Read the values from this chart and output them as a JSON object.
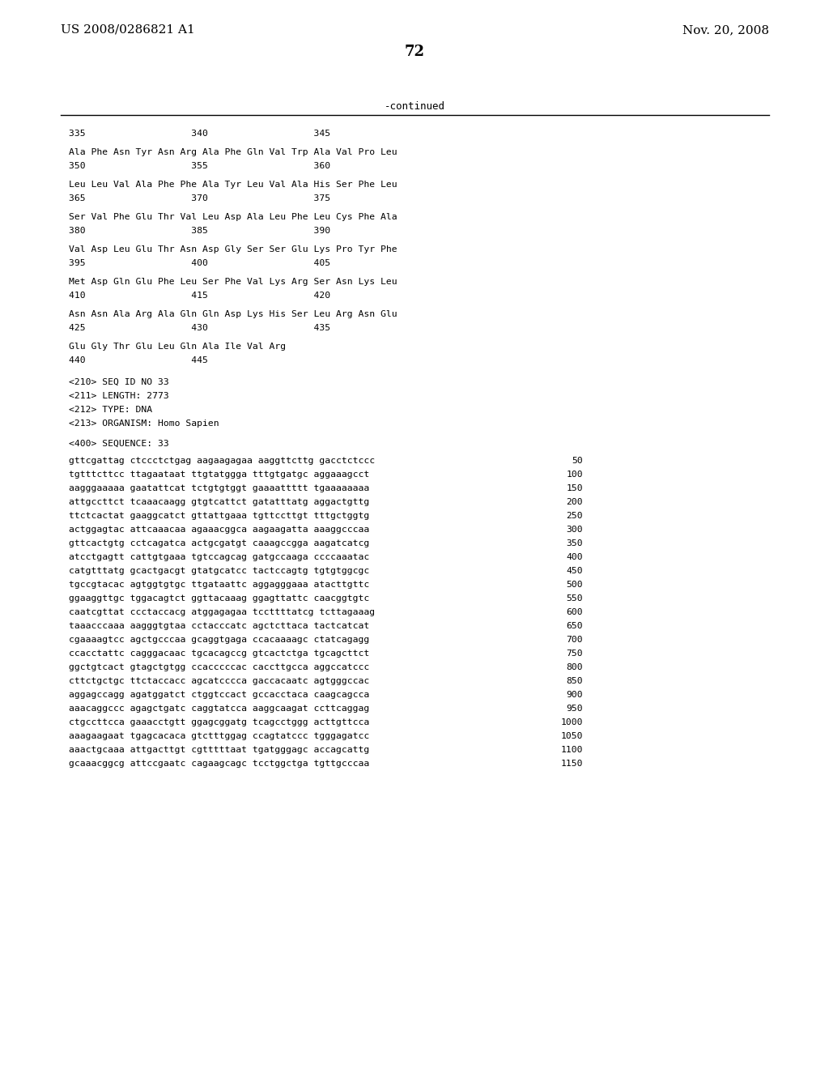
{
  "header_left": "US 2008/0286821 A1",
  "header_right": "Nov. 20, 2008",
  "page_number": "72",
  "continued_label": "-continued",
  "background_color": "#ffffff",
  "text_color": "#000000",
  "section_lines": [
    "335                   340                   345",
    "",
    "Ala Phe Asn Tyr Asn Arg Ala Phe Gln Val Trp Ala Val Pro Leu",
    "350                   355                   360",
    "",
    "Leu Leu Val Ala Phe Phe Ala Tyr Leu Val Ala His Ser Phe Leu",
    "365                   370                   375",
    "",
    "Ser Val Phe Glu Thr Val Leu Asp Ala Leu Phe Leu Cys Phe Ala",
    "380                   385                   390",
    "",
    "Val Asp Leu Glu Thr Asn Asp Gly Ser Ser Glu Lys Pro Tyr Phe",
    "395                   400                   405",
    "",
    "Met Asp Gln Glu Phe Leu Ser Phe Val Lys Arg Ser Asn Lys Leu",
    "410                   415                   420",
    "",
    "Asn Asn Ala Arg Ala Gln Gln Asp Lys His Ser Leu Arg Asn Glu",
    "425                   430                   435",
    "",
    "Glu Gly Thr Glu Leu Gln Ala Ile Val Arg",
    "440                   445"
  ],
  "seq_info_lines": [
    "<210> SEQ ID NO 33",
    "<211> LENGTH: 2773",
    "<212> TYPE: DNA",
    "<213> ORGANISM: Homo Sapien",
    "",
    "<400> SEQUENCE: 33"
  ],
  "sequence_lines": [
    [
      "gttcgattag ctccctctgag aagaagagaa aaggttcttg gacctctccc",
      "50"
    ],
    [
      "tgtttcttcc ttagaataat ttgtatggga tttgtgatgc aggaaagcct",
      "100"
    ],
    [
      "aagggaaaaa gaatattcat tctgtgtggt gaaaattttt tgaaaaaaaa",
      "150"
    ],
    [
      "attgccttct tcaaacaagg gtgtcattct gatatttatg aggactgttg",
      "200"
    ],
    [
      "ttctcactat gaaggcatct gttattgaaa tgttccttgt tttgctggtg",
      "250"
    ],
    [
      "actggagtac attcaaacaa agaaacggca aagaagatta aaaggcccaa",
      "300"
    ],
    [
      "gttcactgtg cctcagatca actgcgatgt caaagccgga aagatcatcg",
      "350"
    ],
    [
      "atcctgagtt cattgtgaaa tgtccagcag gatgccaaga ccccaaatac",
      "400"
    ],
    [
      "catgtttatg gcactgacgt gtatgcatcc tactccagtg tgtgtggcgc",
      "450"
    ],
    [
      "tgccgtacac agtggtgtgc ttgataattc aggagggaaa atacttgttc",
      "500"
    ],
    [
      "ggaaggttgc tggacagtct ggttacaaag ggagttattc caacggtgtc",
      "550"
    ],
    [
      "caatcgttat ccctaccacg atggagagaa tccttttatcg tcttagaaag",
      "600"
    ],
    [
      "taaacccaaa aagggtgtaa cctacccatc agctcttaca tactcatcat",
      "650"
    ],
    [
      "cgaaaagtcc agctgcccaa gcaggtgaga ccacaaaagc ctatcagagg",
      "700"
    ],
    [
      "ccacctattc cagggacaac tgcacagccg gtcactctga tgcagcttct",
      "750"
    ],
    [
      "ggctgtcact gtagctgtgg ccacccccac caccttgcca aggccatccc",
      "800"
    ],
    [
      "cttctgctgc ttctaccacc agcatcccca gaccacaatc agtgggccac",
      "850"
    ],
    [
      "aggagccagg agatggatct ctggtccact gccacctaca caagcagcca",
      "900"
    ],
    [
      "aaacaggccc agagctgatc caggtatcca aaggcaagat ccttcaggag",
      "950"
    ],
    [
      "ctgccttcca gaaacctgtt ggagcggatg tcagcctggg acttgttcca",
      "1000"
    ],
    [
      "aaagaagaat tgagcacaca gtctttggag ccagtatccc tgggagatcc",
      "1050"
    ],
    [
      "aaactgcaaa attgacttgt cgtttttaat tgatgggagc accagcattg",
      "1100"
    ],
    [
      "gcaaacggcg attccgaatc cagaagcagc tcctggctga tgttgcccaa",
      "1150"
    ]
  ]
}
